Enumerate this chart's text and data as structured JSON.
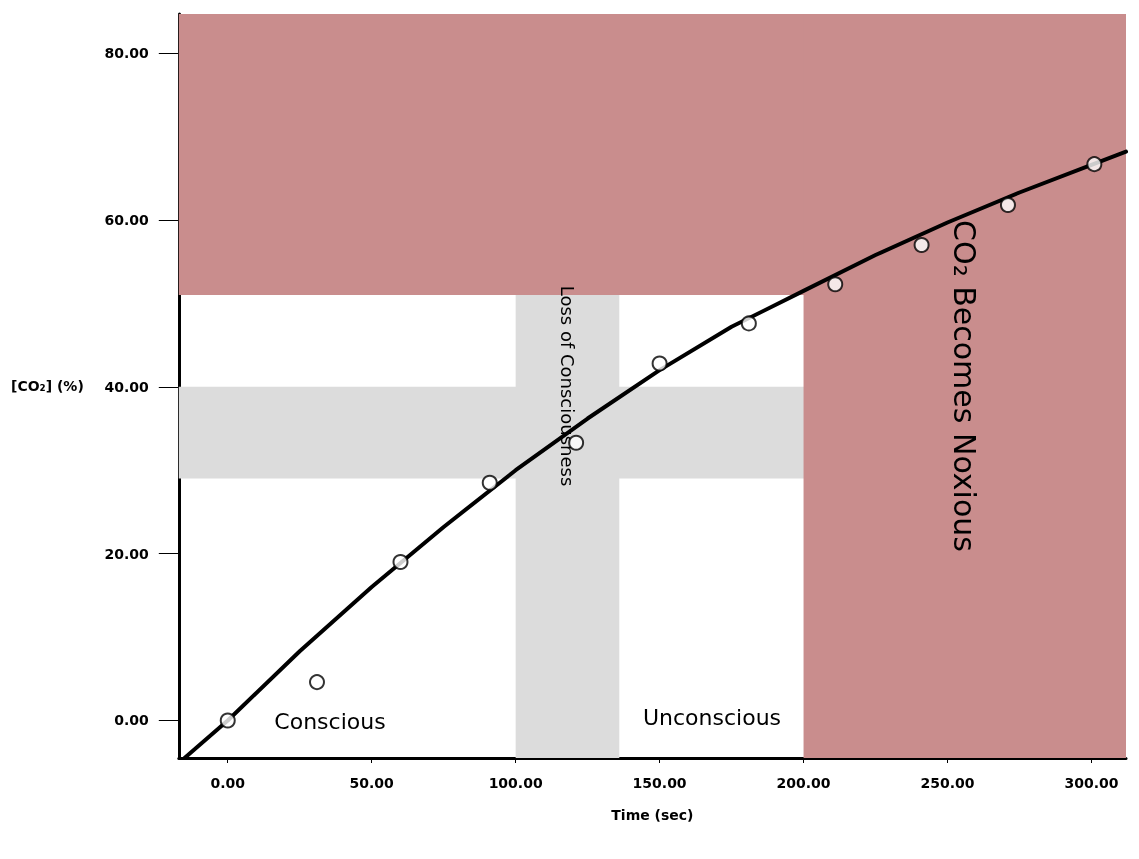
{
  "chart_data": {
    "type": "scatter",
    "xlabel": "Time (sec)",
    "ylabel": "[CO₂] (%)",
    "xlim": [
      -17,
      312
    ],
    "ylim": [
      -4.5,
      84.7
    ],
    "xticks": [
      {
        "value": 0,
        "label": "0.00"
      },
      {
        "value": 50,
        "label": "50.00"
      },
      {
        "value": 100,
        "label": "100.00"
      },
      {
        "value": 150,
        "label": "150.00"
      },
      {
        "value": 200,
        "label": "200.00"
      },
      {
        "value": 250,
        "label": "250.00"
      },
      {
        "value": 300,
        "label": "300.00"
      }
    ],
    "yticks": [
      {
        "value": 0,
        "label": "0.00"
      },
      {
        "value": 20,
        "label": "20.00"
      },
      {
        "value": 40,
        "label": "40.00"
      },
      {
        "value": 60,
        "label": "60.00"
      },
      {
        "value": 80,
        "label": "80.00"
      }
    ],
    "grid": false,
    "series": [
      {
        "color": "#000000",
        "marker": "circle",
        "x": [
          0,
          31,
          60,
          91,
          121,
          150,
          181,
          211,
          241,
          271,
          301
        ],
        "values": [
          0,
          4.6,
          19,
          28.5,
          33.3,
          42.8,
          47.6,
          52.3,
          57,
          61.8,
          66.7
        ]
      },
      {
        "type": "line",
        "color": "#000000",
        "marker": "none",
        "line_style": "solid",
        "x": [
          -15,
          0,
          25,
          50,
          75,
          100,
          125,
          150,
          175,
          200,
          225,
          250,
          275,
          300,
          312
        ],
        "values": [
          -4.5,
          0,
          8.3,
          16,
          23.2,
          30,
          36.2,
          42,
          47.2,
          51.5,
          55.8,
          59.7,
          63.3,
          66.6,
          68.2
        ]
      }
    ],
    "bands": [
      {
        "axis": "y",
        "from": 29,
        "to": 40,
        "color": "#dcdcdc",
        "label": null
      },
      {
        "axis": "x",
        "from": 100,
        "to": 136,
        "color": "#dcdcdc",
        "label": "Loss of Consciousness"
      },
      {
        "axis": "y",
        "from": 51,
        "to": 84.7,
        "color": "#c98d8d",
        "label": null
      },
      {
        "axis": "x",
        "from": 200,
        "to": 312,
        "color": "#c98d8d",
        "label": "CO₂ Becomes Noxious"
      }
    ],
    "annotations": [
      "Conscious",
      "Unconscious"
    ]
  }
}
